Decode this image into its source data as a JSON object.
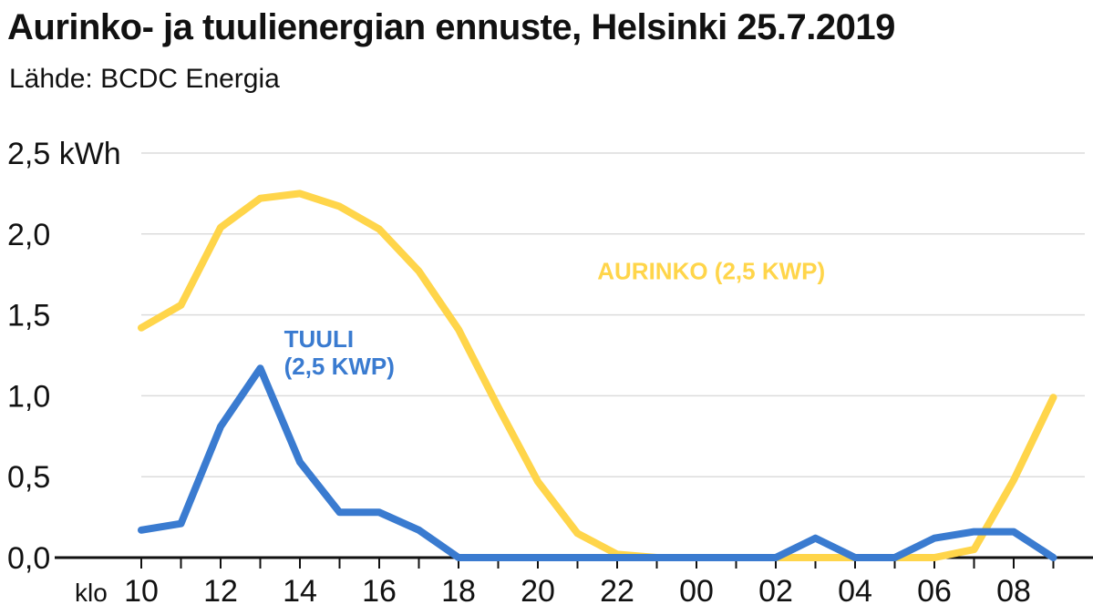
{
  "title": "Aurinko- ja tuulienergian ennuste, Helsinki 25.7.2019",
  "subtitle": "Lähde: BCDC Energia",
  "chart_data": {
    "type": "line",
    "ylabel_unit": "kWh",
    "ylim": [
      0,
      2.5
    ],
    "yticks": [
      0.0,
      0.5,
      1.0,
      1.5,
      2.0,
      2.5
    ],
    "ytick_labels": [
      "0,0",
      "0,5",
      "1,0",
      "1,5",
      "2,0",
      "2,5"
    ],
    "xprefix": "klo",
    "xtick_labels": [
      "10",
      "12",
      "14",
      "16",
      "18",
      "20",
      "22",
      "00",
      "02",
      "04",
      "06",
      "08"
    ],
    "x": [
      10,
      11,
      12,
      13,
      14,
      15,
      16,
      17,
      18,
      19,
      20,
      21,
      22,
      23,
      24,
      25,
      26,
      27,
      28,
      29,
      30,
      31,
      32,
      33
    ],
    "x_hours": [
      "10",
      "11",
      "12",
      "13",
      "14",
      "15",
      "16",
      "17",
      "18",
      "19",
      "20",
      "21",
      "22",
      "23",
      "00",
      "01",
      "02",
      "03",
      "04",
      "05",
      "06",
      "07",
      "08",
      "09"
    ],
    "grid": true,
    "series": [
      {
        "name_lines": [
          "AURINKO (2,5 KWP)"
        ],
        "color": "#ffd54a",
        "values": [
          1.42,
          1.56,
          2.04,
          2.22,
          2.25,
          2.17,
          2.03,
          1.77,
          1.41,
          0.93,
          0.47,
          0.15,
          0.02,
          0.0,
          0.0,
          0.0,
          0.0,
          0.0,
          0.0,
          0.0,
          0.0,
          0.05,
          0.48,
          0.99
        ]
      },
      {
        "name_lines": [
          "TUULI",
          "(2,5 KWP)"
        ],
        "color": "#3a7bd0",
        "values": [
          0.17,
          0.21,
          0.81,
          1.17,
          0.59,
          0.28,
          0.28,
          0.17,
          0.0,
          0.0,
          0.0,
          0.0,
          0.0,
          0.0,
          0.0,
          0.0,
          0.0,
          0.12,
          0.0,
          0.0,
          0.12,
          0.16,
          0.16,
          0.0
        ]
      }
    ]
  }
}
